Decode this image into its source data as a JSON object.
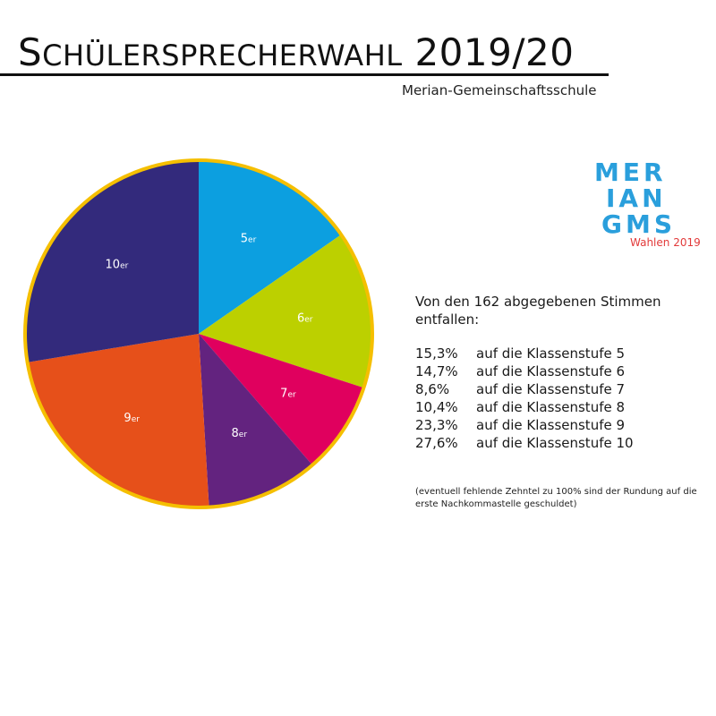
{
  "header": {
    "title_initial": "S",
    "title_caps": "CHÜLERSPRECHERWAHL",
    "title_year": "2019/20",
    "subtitle": "Merian-Gemeinschaftsschule"
  },
  "logo": {
    "lines": [
      "MER",
      "IAN",
      "GMS"
    ],
    "tagline": "Wahlen 2019",
    "colors": {
      "letters": "#2a9fdc",
      "tagline": "#e23a3a"
    }
  },
  "info": {
    "intro": "Von den 162 abgegebenen Stimmen entfallen:",
    "rows": [
      {
        "pct": "15,3%",
        "text": "auf die Klassenstufe 5"
      },
      {
        "pct": "14,7%",
        "text": "auf die Klassenstufe 6"
      },
      {
        "pct": "8,6%",
        "text": "auf die Klassenstufe 7"
      },
      {
        "pct": "10,4%",
        "text": "auf die Klassenstufe 8"
      },
      {
        "pct": "23,3%",
        "text": "auf die Klassenstufe 9"
      },
      {
        "pct": "27,6%",
        "text": "auf die Klassenstufe 10"
      }
    ],
    "footnote": "(eventuell fehlende Zehntel zu 100% sind der Rundung auf die erste Nachkommastelle geschuldet)"
  },
  "chart_data": {
    "type": "pie",
    "categories": [
      "5er",
      "6er",
      "7er",
      "8er",
      "9er",
      "10er"
    ],
    "values": [
      15.3,
      14.7,
      8.6,
      10.4,
      23.3,
      27.6
    ],
    "labels": [
      {
        "num": "5",
        "suffix": "er"
      },
      {
        "num": "6",
        "suffix": "er"
      },
      {
        "num": "7",
        "suffix": "er"
      },
      {
        "num": "8",
        "suffix": "er"
      },
      {
        "num": "9",
        "suffix": "er"
      },
      {
        "num": "10",
        "suffix": "er"
      }
    ],
    "colors": [
      "#0c9fe0",
      "#bcd000",
      "#e0005e",
      "#63237f",
      "#e6501a",
      "#332a7c"
    ],
    "border_color": "#f5bf00",
    "start_angle": "12 o'clock",
    "direction": "clockwise"
  }
}
